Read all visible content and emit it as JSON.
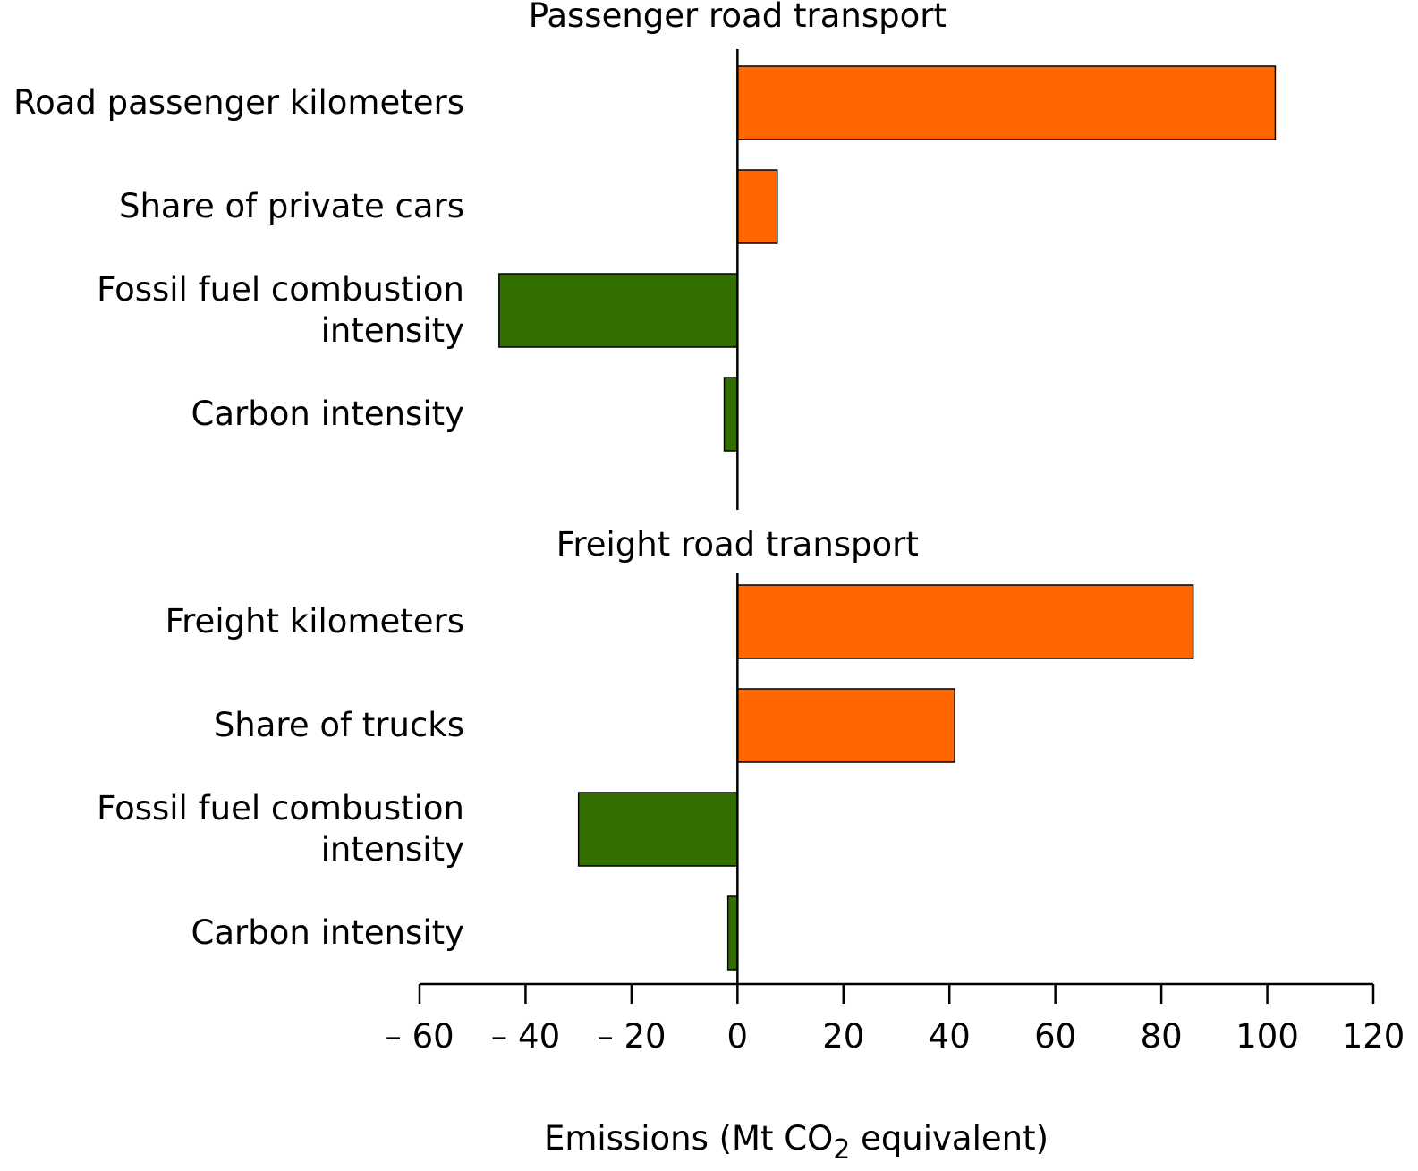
{
  "chart_data": {
    "type": "bar",
    "orientation": "horizontal",
    "xlabel": {
      "pre": "Emissions (Mt CO",
      "sub": "2",
      "post": " equivalent)"
    },
    "xlim": [
      -60,
      120
    ],
    "xticks": [
      -60,
      -40,
      -20,
      0,
      20,
      40,
      60,
      80,
      100,
      120
    ],
    "xtick_labels": [
      "– 60",
      "– 40",
      "– 20",
      "0",
      "20",
      "40",
      "60",
      "80",
      "100",
      "120"
    ],
    "colors": {
      "increase": "#FF6600",
      "decrease": "#336F00"
    },
    "panels": [
      {
        "title": "Passenger road transport",
        "categories": [
          [
            "Road passenger kilometers"
          ],
          [
            "Share of private cars"
          ],
          [
            "Fossil fuel combustion",
            "intensity"
          ],
          [
            "Carbon intensity"
          ]
        ],
        "values": [
          101.5,
          7.5,
          -45,
          -2.5
        ]
      },
      {
        "title": "Freight road transport",
        "categories": [
          [
            "Freight kilometers"
          ],
          [
            "Share of trucks"
          ],
          [
            "Fossil fuel combustion",
            "intensity"
          ],
          [
            "Carbon intensity"
          ]
        ],
        "values": [
          86,
          41,
          -30,
          -1.8
        ]
      }
    ]
  }
}
